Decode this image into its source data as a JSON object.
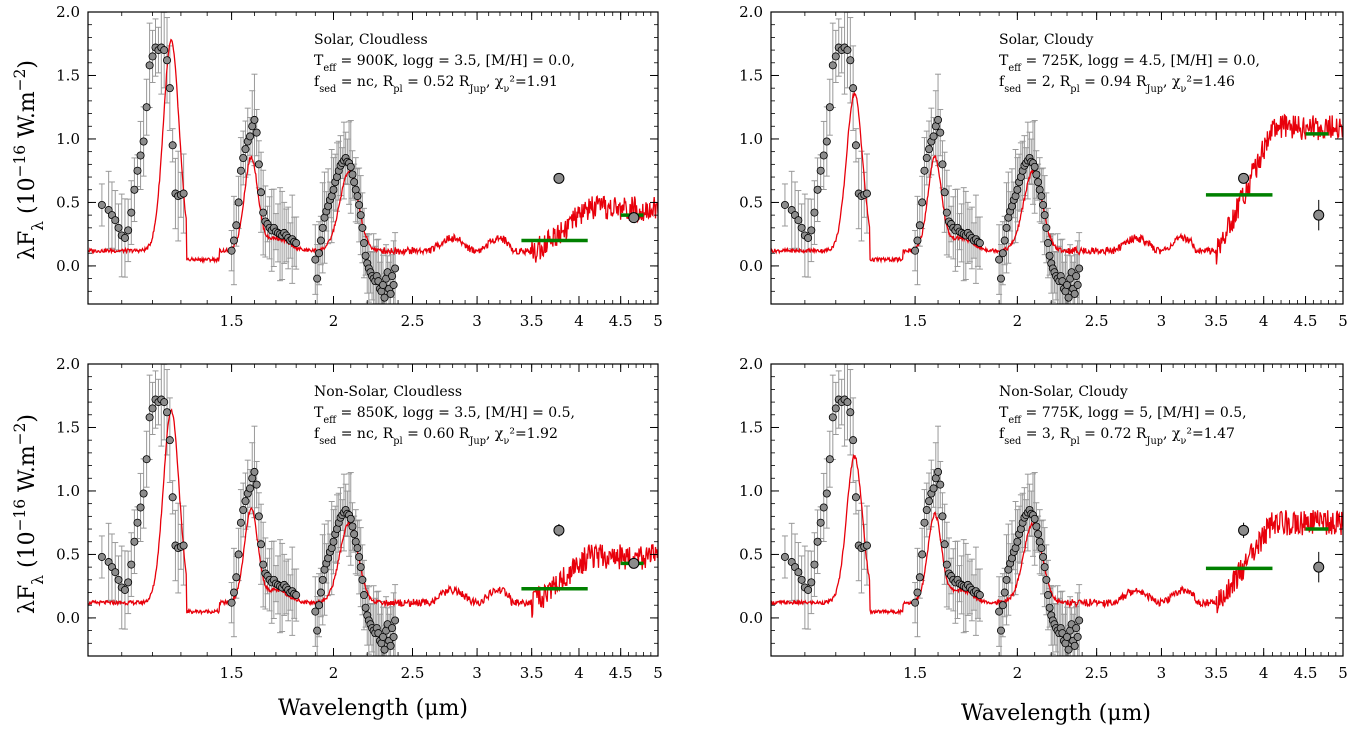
{
  "figure": {
    "ylabel": "λF_λ (10^−16 W.m^−2)",
    "xlabel": "Wavelength (μm)"
  },
  "chart_data": [
    {
      "type": "line",
      "title": "",
      "xscale": "log",
      "xlim": [
        1.0,
        5.0
      ],
      "ylim": [
        -0.3,
        2.0
      ],
      "xticks": [
        1.5,
        2,
        2.5,
        3,
        3.5,
        4,
        4.5,
        5
      ],
      "xtick_labels": [
        "1.5",
        "2",
        "2.5",
        "3",
        "3.5",
        "4",
        "4.5",
        "5"
      ],
      "yticks": [
        0.0,
        0.5,
        1.0,
        1.5,
        2.0
      ],
      "ytick_labels": [
        "0.0",
        "0.5",
        "1.0",
        "1.5",
        "2.0"
      ],
      "grid": false,
      "annotation": [
        "Solar, Cloudless",
        "T_eff = 900K, logg = 3.5, [M/H] = 0.0,",
        "f_sed = nc, R_pl = 0.52 R_Jup, χ²_ν=1.91"
      ],
      "model_scale": 1.0,
      "photometry": [
        {
          "x": 3.78,
          "y": 0.69,
          "yerr": 0.04
        },
        {
          "x": 4.67,
          "y": 0.38,
          "yerr": 0.04
        }
      ],
      "bands": [
        {
          "x0": 3.4,
          "x1": 4.1,
          "y": 0.2
        },
        {
          "x0": 4.5,
          "x1": 4.8,
          "y": 0.4
        }
      ]
    },
    {
      "type": "line",
      "title": "",
      "xscale": "log",
      "xlim": [
        1.0,
        5.0
      ],
      "ylim": [
        -0.3,
        2.0
      ],
      "xticks": [
        1.5,
        2,
        2.5,
        3,
        3.5,
        4,
        4.5,
        5
      ],
      "xtick_labels": [
        "1.5",
        "2",
        "2.5",
        "3",
        "3.5",
        "4",
        "4.5",
        "5"
      ],
      "yticks": [
        0.0,
        0.5,
        1.0,
        1.5,
        2.0
      ],
      "ytick_labels": [
        "0.0",
        "0.5",
        "1.0",
        "1.5",
        "2.0"
      ],
      "grid": false,
      "annotation": [
        "Solar, Cloudy",
        "T_eff = 725K, logg = 4.5, [M/H] = 0.0,",
        "f_sed = 2, R_pl = 0.94 R_Jup, χ²_ν=1.46"
      ],
      "model_scale": 0.75,
      "photometry": [
        {
          "x": 3.78,
          "y": 0.69,
          "yerr": 0.04
        },
        {
          "x": 4.67,
          "y": 0.4,
          "yerr": 0.12
        }
      ],
      "bands": [
        {
          "x0": 3.4,
          "x1": 4.1,
          "y": 0.56
        },
        {
          "x0": 4.5,
          "x1": 4.8,
          "y": 1.04
        }
      ]
    },
    {
      "type": "line",
      "title": "",
      "xscale": "log",
      "xlim": [
        1.0,
        5.0
      ],
      "ylim": [
        -0.3,
        2.0
      ],
      "xticks": [
        1.5,
        2,
        2.5,
        3,
        3.5,
        4,
        4.5,
        5
      ],
      "xtick_labels": [
        "1.5",
        "2",
        "2.5",
        "3",
        "3.5",
        "4",
        "4.5",
        "5"
      ],
      "yticks": [
        0.0,
        0.5,
        1.0,
        1.5,
        2.0
      ],
      "ytick_labels": [
        "0.0",
        "0.5",
        "1.0",
        "1.5",
        "2.0"
      ],
      "grid": false,
      "annotation": [
        "Non-Solar, Cloudless",
        "T_eff = 850K, logg = 3.5, [M/H] = 0.5,",
        "f_sed = nc, R_pl = 0.60 R_Jup, χ²_ν=1.92"
      ],
      "model_scale": 0.92,
      "photometry": [
        {
          "x": 3.78,
          "y": 0.69,
          "yerr": 0.05
        },
        {
          "x": 4.67,
          "y": 0.43,
          "yerr": 0.04
        }
      ],
      "bands": [
        {
          "x0": 3.4,
          "x1": 4.1,
          "y": 0.23
        },
        {
          "x0": 4.5,
          "x1": 4.8,
          "y": 0.43
        }
      ]
    },
    {
      "type": "line",
      "title": "",
      "xscale": "log",
      "xlim": [
        1.0,
        5.0
      ],
      "ylim": [
        -0.3,
        2.0
      ],
      "xticks": [
        1.5,
        2,
        2.5,
        3,
        3.5,
        4,
        4.5,
        5
      ],
      "xtick_labels": [
        "1.5",
        "2",
        "2.5",
        "3",
        "3.5",
        "4",
        "4.5",
        "5"
      ],
      "yticks": [
        0.0,
        0.5,
        1.0,
        1.5,
        2.0
      ],
      "ytick_labels": [
        "0.0",
        "0.5",
        "1.0",
        "1.5",
        "2.0"
      ],
      "grid": false,
      "annotation": [
        "Non-Solar, Cloudy",
        "T_eff = 775K, logg = 5, [M/H] = 0.5,",
        "f_sed = 3, R_pl = 0.72 R_Jup, χ²_ν=1.47"
      ],
      "model_scale": 0.7,
      "photometry": [
        {
          "x": 3.78,
          "y": 0.69,
          "yerr": 0.06
        },
        {
          "x": 4.67,
          "y": 0.4,
          "yerr": 0.12
        }
      ],
      "bands": [
        {
          "x0": 3.4,
          "x1": 4.1,
          "y": 0.39
        },
        {
          "x0": 4.5,
          "x1": 4.8,
          "y": 0.7
        }
      ]
    }
  ],
  "spectrum": {
    "x": [
      1.04,
      1.06,
      1.07,
      1.08,
      1.09,
      1.1,
      1.11,
      1.12,
      1.13,
      1.14,
      1.15,
      1.16,
      1.17,
      1.18,
      1.19,
      1.2,
      1.21,
      1.22,
      1.23,
      1.24,
      1.25,
      1.26,
      1.27,
      1.28,
      1.29,
      1.3,
      1.31,
      1.5,
      1.51,
      1.52,
      1.53,
      1.54,
      1.55,
      1.56,
      1.57,
      1.58,
      1.59,
      1.6,
      1.61,
      1.62,
      1.63,
      1.64,
      1.65,
      1.66,
      1.67,
      1.68,
      1.69,
      1.7,
      1.71,
      1.72,
      1.73,
      1.74,
      1.75,
      1.76,
      1.77,
      1.78,
      1.79,
      1.8,
      1.9,
      1.91,
      1.92,
      1.93,
      1.94,
      1.95,
      1.96,
      1.97,
      1.98,
      1.99,
      2.0,
      2.01,
      2.02,
      2.03,
      2.04,
      2.05,
      2.06,
      2.07,
      2.08,
      2.09,
      2.1,
      2.11,
      2.12,
      2.13,
      2.14,
      2.15,
      2.16,
      2.17,
      2.18,
      2.19,
      2.2,
      2.21,
      2.22,
      2.23,
      2.24,
      2.25,
      2.26,
      2.27,
      2.28,
      2.29,
      2.3,
      2.31,
      2.32,
      2.33,
      2.34,
      2.35,
      2.36,
      2.37,
      2.38
    ],
    "y": [
      0.48,
      0.44,
      0.4,
      0.36,
      0.3,
      0.24,
      0.22,
      0.28,
      0.42,
      0.6,
      0.75,
      0.87,
      0.98,
      1.25,
      1.58,
      1.65,
      1.72,
      1.7,
      1.72,
      1.7,
      1.62,
      1.4,
      0.95,
      0.57,
      0.55,
      0.56,
      0.57,
      0.12,
      0.2,
      0.32,
      0.5,
      0.75,
      0.85,
      0.92,
      0.98,
      1.02,
      1.1,
      1.15,
      1.05,
      0.8,
      0.58,
      0.42,
      0.35,
      0.33,
      0.3,
      0.28,
      0.3,
      0.27,
      0.26,
      0.25,
      0.24,
      0.26,
      0.24,
      0.22,
      0.2,
      0.21,
      0.19,
      0.18,
      0.05,
      -0.1,
      0.1,
      0.2,
      0.3,
      0.38,
      0.43,
      0.47,
      0.52,
      0.55,
      0.6,
      0.66,
      0.7,
      0.75,
      0.79,
      0.81,
      0.83,
      0.85,
      0.82,
      0.81,
      0.78,
      0.72,
      0.66,
      0.6,
      0.55,
      0.48,
      0.4,
      0.3,
      0.18,
      0.08,
      0.02,
      -0.02,
      -0.05,
      -0.08,
      -0.1,
      -0.12,
      -0.08,
      -0.12,
      -0.18,
      -0.2,
      -0.15,
      -0.25,
      -0.1,
      -0.05,
      -0.18,
      -0.22,
      -0.08,
      -0.15,
      -0.02
    ]
  }
}
